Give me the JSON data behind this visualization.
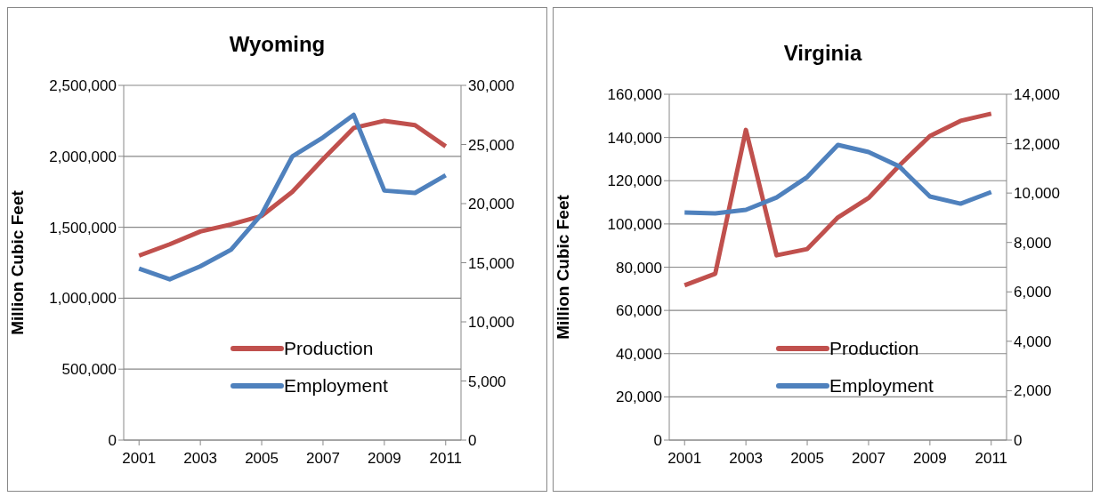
{
  "chart_data": [
    {
      "type": "line",
      "title": "Wyoming",
      "ylabel": "Million Cubic Feet",
      "x": [
        2001,
        2002,
        2003,
        2004,
        2005,
        2006,
        2007,
        2008,
        2009,
        2010,
        2011
      ],
      "series": [
        {
          "name": "Production",
          "color": "#c0504d",
          "values": [
            1300000,
            1380000,
            1470000,
            1520000,
            1580000,
            1750000,
            1980000,
            2200000,
            2250000,
            2220000,
            2070000
          ]
        },
        {
          "name": "Employment",
          "color": "#4f81bd",
          "axis": "y2",
          "values": [
            14500,
            13600,
            14700,
            16100,
            19100,
            24000,
            25600,
            27500,
            21100,
            20900,
            22400
          ]
        }
      ],
      "xlim": [
        2000.5,
        2011.5
      ],
      "xticks": [
        2001,
        2003,
        2005,
        2007,
        2009,
        2011
      ],
      "ylim": [
        0,
        2500000
      ],
      "yticks": [
        0,
        {
          "value": 500000,
          "label": "500,000"
        },
        {
          "value": 1000000,
          "label": "1,000,000"
        },
        {
          "value": 1500000,
          "label": "1,500,000"
        },
        {
          "value": 2000000,
          "label": "2,000,000"
        },
        {
          "value": 2500000,
          "label": "2,500,000"
        }
      ],
      "y2lim": [
        0,
        30000
      ],
      "y2ticks": [
        0,
        {
          "value": 5000,
          "label": "5,000"
        },
        {
          "value": 10000,
          "label": "10,000"
        },
        {
          "value": 15000,
          "label": "15,000"
        },
        {
          "value": 20000,
          "label": "20,000"
        },
        {
          "value": 25000,
          "label": "25,000"
        },
        {
          "value": 30000,
          "label": "30,000"
        }
      ],
      "grid": "y",
      "legend": "bottom",
      "marker": "none",
      "line_style": "solid"
    },
    {
      "type": "line",
      "title": "Virginia",
      "ylabel": "Million Cubic Feet",
      "x": [
        2001,
        2002,
        2003,
        2004,
        2005,
        2006,
        2007,
        2008,
        2009,
        2010,
        2011
      ],
      "series": [
        {
          "name": "Production",
          "color": "#c0504d",
          "values": [
            71600,
            77000,
            143500,
            85500,
            88400,
            103000,
            112000,
            127000,
            140700,
            147700,
            151000
          ]
        },
        {
          "name": "Employment",
          "color": "#4f81bd",
          "axis": "y2",
          "values": [
            9210,
            9180,
            9320,
            9820,
            10650,
            11950,
            11660,
            11080,
            9860,
            9570,
            10040
          ]
        }
      ],
      "xlim": [
        2000.5,
        2011.5
      ],
      "xticks": [
        2001,
        2003,
        2005,
        2007,
        2009,
        2011
      ],
      "ylim": [
        0,
        160000
      ],
      "yticks": [
        0,
        {
          "value": 20000,
          "label": "20,000"
        },
        {
          "value": 40000,
          "label": "40,000"
        },
        {
          "value": 60000,
          "label": "60,000"
        },
        {
          "value": 80000,
          "label": "80,000"
        },
        {
          "value": 100000,
          "label": "100,000"
        },
        {
          "value": 120000,
          "label": "120,000"
        },
        {
          "value": 140000,
          "label": "140,000"
        },
        {
          "value": 160000,
          "label": "160,000"
        }
      ],
      "y2lim": [
        0,
        14000
      ],
      "y2ticks": [
        0,
        {
          "value": 2000,
          "label": "2,000"
        },
        {
          "value": 4000,
          "label": "4,000"
        },
        {
          "value": 6000,
          "label": "6,000"
        },
        {
          "value": 8000,
          "label": "8,000"
        },
        {
          "value": 10000,
          "label": "10,000"
        },
        {
          "value": 12000,
          "label": "12,000"
        },
        {
          "value": 14000,
          "label": "14,000"
        }
      ],
      "grid": "y",
      "legend": "bottom",
      "marker": "none",
      "line_style": "solid"
    }
  ]
}
